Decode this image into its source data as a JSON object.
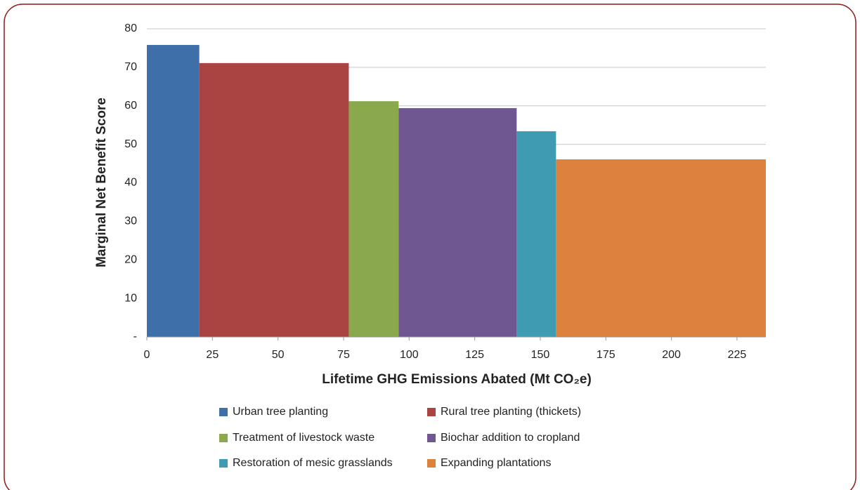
{
  "chart_data": {
    "type": "variable-width-bar",
    "xlabel": "Lifetime GHG Emissions Abated (Mt CO₂e)",
    "ylabel": "Marginal Net Benefit Score",
    "categories": [
      "Urban tree planting",
      "Rural tree planting (thickets)",
      "Treatment of livestock waste",
      "Biochar addition to cropland",
      "Restoration of mesic grasslands",
      "Expanding plantations"
    ],
    "bins": [
      0,
      20,
      77,
      96,
      141,
      156,
      236
    ],
    "values": [
      75.8,
      71.1,
      61.2,
      59.4,
      53.4,
      46.1
    ],
    "colors": [
      "#3e6fa8",
      "#a94442",
      "#8aa84c",
      "#6f5892",
      "#3e9bb2",
      "#dc823c"
    ],
    "xlim": [
      0,
      236
    ],
    "xticks": [
      0,
      25,
      50,
      75,
      100,
      125,
      150,
      175,
      200,
      225
    ],
    "ylim": [
      0,
      80
    ],
    "yticks": [
      {
        "value": 0,
        "label": "-"
      },
      10,
      20,
      30,
      40,
      50,
      60,
      70,
      80
    ],
    "grid": true
  }
}
